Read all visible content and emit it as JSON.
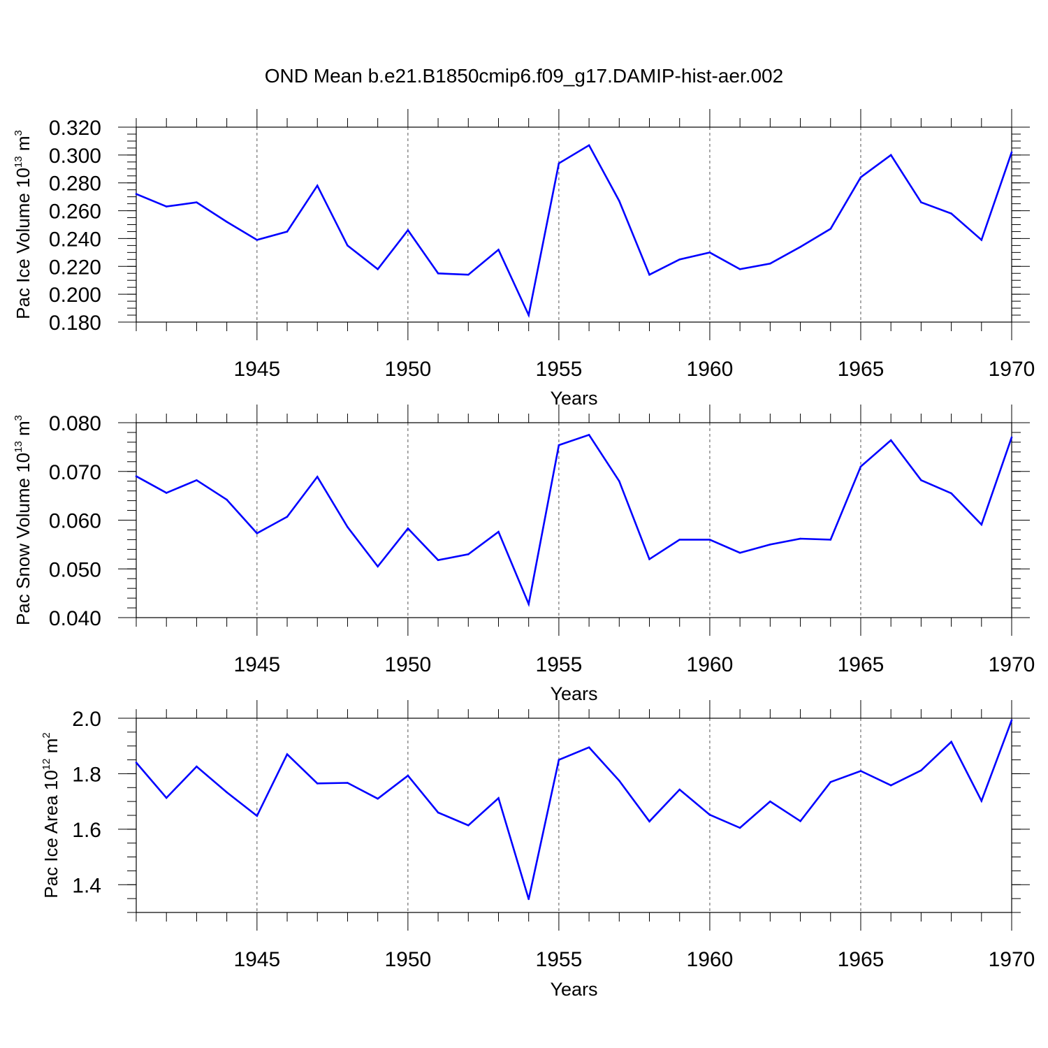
{
  "title": "OND Mean b.e21.B1850cmip6.f09_g17.DAMIP-hist-aer.002",
  "colors": {
    "series": "#0000ff",
    "axis": "#000000",
    "grid": "#555555"
  },
  "chart_data": [
    {
      "type": "line",
      "ylabel": {
        "prefix": "Pac Ice Volume 10",
        "exp": "13",
        "unit": " m",
        "unit_exp": "3"
      },
      "xlabel": "Years",
      "xlim": [
        1941,
        1970
      ],
      "ylim": [
        0.18,
        0.32
      ],
      "yticks": [
        0.18,
        0.2,
        0.22,
        0.24,
        0.26,
        0.28,
        0.3,
        0.32
      ],
      "ytick_labels": [
        "0.180",
        "0.200",
        "0.220",
        "0.240",
        "0.260",
        "0.280",
        "0.300",
        "0.320"
      ],
      "yminor_step": 0.005,
      "xticks": [
        1945,
        1950,
        1955,
        1960,
        1965,
        1970
      ],
      "xtick_labels": [
        "1945",
        "1950",
        "1955",
        "1960",
        "1965",
        "1970"
      ],
      "grid": "vertical dashed at major x ticks",
      "x": [
        1941,
        1942,
        1943,
        1944,
        1945,
        1946,
        1947,
        1948,
        1949,
        1950,
        1951,
        1952,
        1953,
        1954,
        1955,
        1956,
        1957,
        1958,
        1959,
        1960,
        1961,
        1962,
        1963,
        1964,
        1965,
        1966,
        1967,
        1968,
        1969,
        1970
      ],
      "values": [
        0.272,
        0.263,
        0.266,
        0.252,
        0.239,
        0.245,
        0.278,
        0.235,
        0.218,
        0.246,
        0.215,
        0.214,
        0.232,
        0.185,
        0.294,
        0.307,
        0.267,
        0.214,
        0.225,
        0.23,
        0.218,
        0.222,
        0.234,
        0.247,
        0.284,
        0.3,
        0.266,
        0.258,
        0.239,
        0.302
      ]
    },
    {
      "type": "line",
      "ylabel": {
        "prefix": "Pac Snow Volume 10",
        "exp": "13",
        "unit": " m",
        "unit_exp": "3"
      },
      "xlabel": "Years",
      "xlim": [
        1941,
        1970
      ],
      "ylim": [
        0.04,
        0.08
      ],
      "yticks": [
        0.04,
        0.05,
        0.06,
        0.07,
        0.08
      ],
      "ytick_labels": [
        "0.040",
        "0.050",
        "0.060",
        "0.070",
        "0.080"
      ],
      "yminor_step": 0.002,
      "xticks": [
        1945,
        1950,
        1955,
        1960,
        1965,
        1970
      ],
      "xtick_labels": [
        "1945",
        "1950",
        "1955",
        "1960",
        "1965",
        "1970"
      ],
      "grid": "vertical dashed at major x ticks",
      "x": [
        1941,
        1942,
        1943,
        1944,
        1945,
        1946,
        1947,
        1948,
        1949,
        1950,
        1951,
        1952,
        1953,
        1954,
        1955,
        1956,
        1957,
        1958,
        1959,
        1960,
        1961,
        1962,
        1963,
        1964,
        1965,
        1966,
        1967,
        1968,
        1969,
        1970
      ],
      "values": [
        0.069,
        0.0656,
        0.0682,
        0.0642,
        0.0573,
        0.0607,
        0.0689,
        0.0586,
        0.0505,
        0.0583,
        0.0518,
        0.053,
        0.0576,
        0.0428,
        0.0754,
        0.0775,
        0.068,
        0.052,
        0.056,
        0.056,
        0.0533,
        0.055,
        0.0562,
        0.056,
        0.071,
        0.0764,
        0.0682,
        0.0655,
        0.0591,
        0.077
      ]
    },
    {
      "type": "line",
      "ylabel": {
        "prefix": "Pac Ice Area 10",
        "exp": "12",
        "unit": " m",
        "unit_exp": "2"
      },
      "xlabel": "Years",
      "xlim": [
        1941,
        1970
      ],
      "ylim": [
        1.3,
        2.0
      ],
      "yticks": [
        1.4,
        1.6,
        1.8,
        2.0
      ],
      "ytick_labels": [
        "1.4",
        "1.6",
        "1.8",
        "2.0"
      ],
      "yminor_step": 0.05,
      "xticks": [
        1945,
        1950,
        1955,
        1960,
        1965,
        1970
      ],
      "xtick_labels": [
        "1945",
        "1950",
        "1955",
        "1960",
        "1965",
        "1970"
      ],
      "grid": "vertical dashed at major x ticks",
      "x": [
        1941,
        1942,
        1943,
        1944,
        1945,
        1946,
        1947,
        1948,
        1949,
        1950,
        1951,
        1952,
        1953,
        1954,
        1955,
        1956,
        1957,
        1958,
        1959,
        1960,
        1961,
        1962,
        1963,
        1964,
        1965,
        1966,
        1967,
        1968,
        1969,
        1970
      ],
      "values": [
        1.84,
        1.713,
        1.826,
        1.733,
        1.648,
        1.87,
        1.765,
        1.767,
        1.71,
        1.793,
        1.66,
        1.614,
        1.712,
        1.348,
        1.85,
        1.895,
        1.775,
        1.628,
        1.743,
        1.652,
        1.605,
        1.7,
        1.629,
        1.77,
        1.81,
        1.758,
        1.812,
        1.915,
        1.702,
        1.993
      ]
    }
  ]
}
